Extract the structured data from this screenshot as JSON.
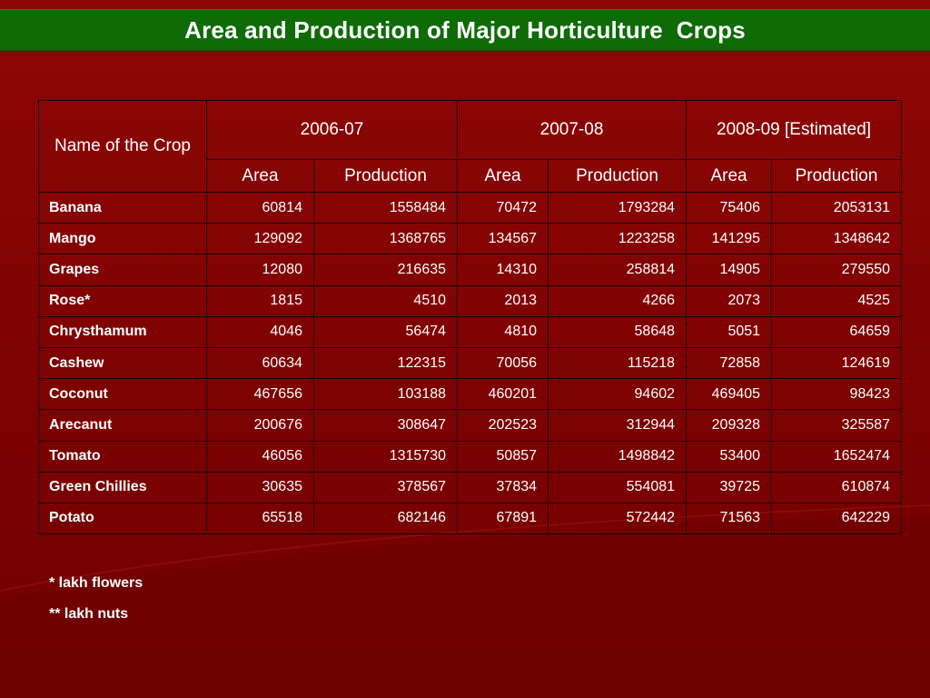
{
  "slide": {
    "title": "Area and Production of Major Horticulture  Crops"
  },
  "table": {
    "crop_header": "Name of the Crop",
    "years": [
      "2006-07",
      "2007-08",
      "2008-09 [Estimated]"
    ],
    "sub_headers": [
      "Area",
      "Production",
      "Area",
      "Production",
      "Area",
      "Production"
    ],
    "rows": [
      {
        "crop": "Banana",
        "values": [
          "60814",
          "1558484",
          "70472",
          "1793284",
          "75406",
          "2053131"
        ]
      },
      {
        "crop": "Mango",
        "values": [
          "129092",
          "1368765",
          "134567",
          "1223258",
          "141295",
          "1348642"
        ]
      },
      {
        "crop": "Grapes",
        "values": [
          "12080",
          "216635",
          "14310",
          "258814",
          "14905",
          "279550"
        ]
      },
      {
        "crop": "Rose*",
        "values": [
          "1815",
          "4510",
          "2013",
          "4266",
          "2073",
          "4525"
        ]
      },
      {
        "crop": "Chrysthamum",
        "values": [
          "4046",
          "56474",
          "4810",
          "58648",
          "5051",
          "64659"
        ]
      },
      {
        "crop": "Cashew",
        "values": [
          "60634",
          "122315",
          "70056",
          "115218",
          "72858",
          "124619"
        ]
      },
      {
        "crop": "Coconut",
        "values": [
          "467656",
          "103188",
          "460201",
          "94602",
          "469405",
          "98423"
        ]
      },
      {
        "crop": "Arecanut",
        "values": [
          "200676",
          "308647",
          "202523",
          "312944",
          "209328",
          "325587"
        ]
      },
      {
        "crop": "Tomato",
        "values": [
          "46056",
          "1315730",
          "50857",
          "1498842",
          "53400",
          "1652474"
        ]
      },
      {
        "crop": "Green Chillies",
        "values": [
          "30635",
          "378567",
          "37834",
          "554081",
          "39725",
          "610874"
        ]
      },
      {
        "crop": "Potato",
        "values": [
          "65518",
          "682146",
          "67891",
          "572442",
          "71563",
          "642229"
        ]
      }
    ]
  },
  "footnotes": [
    "* lakh flowers",
    "** lakh nuts"
  ],
  "colors": {
    "background": "#800000",
    "title_bar": "#0e6b06",
    "text": "#ffffff",
    "grid": "#1a0000"
  }
}
